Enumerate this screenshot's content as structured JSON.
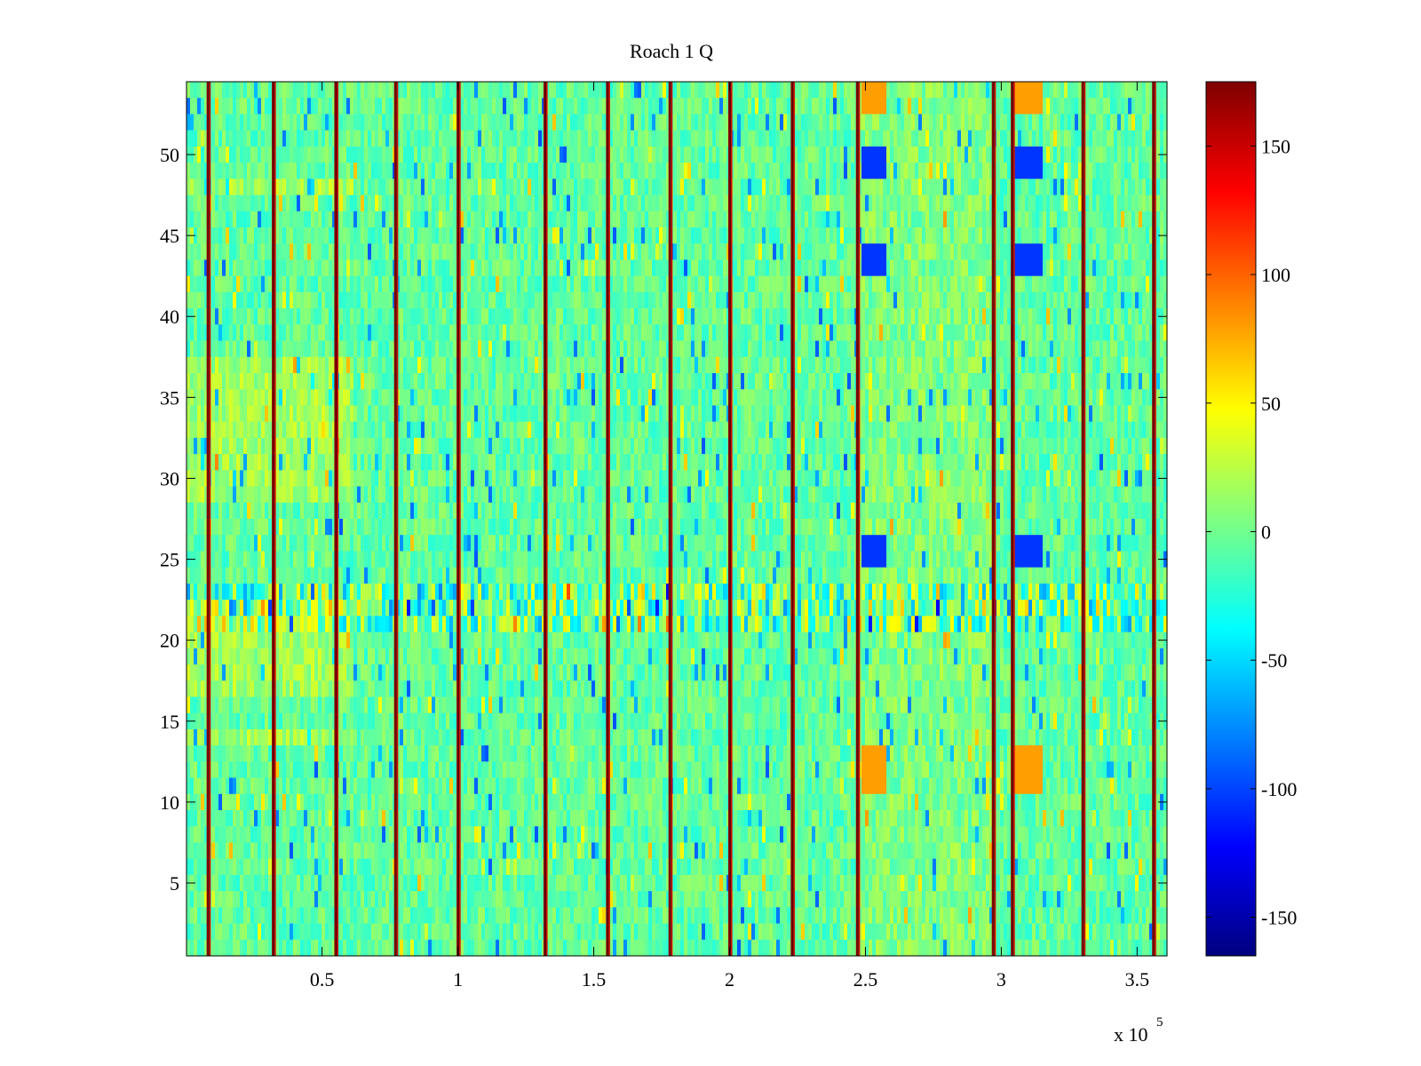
{
  "chart_data": {
    "type": "heatmap",
    "title": "Roach 1 Q",
    "xlabel": "",
    "ylabel": "",
    "x_exponent_label": "x 10",
    "x_exponent_power": "5",
    "xlim": [
      100,
      361000
    ],
    "ylim": [
      0.5,
      54.5
    ],
    "x_ticks": [
      0.5,
      1,
      1.5,
      2,
      2.5,
      3,
      3.5
    ],
    "x_tick_labels": [
      "0.5",
      "1",
      "1.5",
      "2",
      "2.5",
      "3",
      "3.5"
    ],
    "y_ticks": [
      5,
      10,
      15,
      20,
      25,
      30,
      35,
      40,
      45,
      50
    ],
    "y_tick_labels": [
      "5",
      "10",
      "15",
      "20",
      "25",
      "30",
      "35",
      "40",
      "45",
      "50"
    ],
    "rows": 54,
    "colormap": "jet",
    "clim": [
      -165,
      175
    ],
    "colorbar_ticks": [
      150,
      100,
      50,
      0,
      -50,
      -100,
      -150
    ],
    "colorbar_tick_labels": [
      "150",
      "100",
      "50",
      "0",
      "-50",
      "-100",
      "-150"
    ],
    "stripes_x_e5": [
      0.08,
      0.32,
      0.55,
      0.77,
      1.0,
      1.32,
      1.55,
      1.78,
      2.0,
      2.23,
      2.47,
      2.97,
      3.04,
      3.3,
      3.56
    ],
    "dark_blue_spots": [
      {
        "x_e5": 2.53,
        "y": [
          48.5,
          49.5
        ]
      },
      {
        "x_e5": 3.1,
        "y": [
          48.5,
          49.5
        ]
      },
      {
        "x_e5": 2.53,
        "y": [
          24.5,
          25.5
        ]
      },
      {
        "x_e5": 3.1,
        "y": [
          24.5,
          25.5
        ]
      },
      {
        "x_e5": 2.53,
        "y": [
          42.5,
          43.5
        ]
      },
      {
        "x_e5": 3.1,
        "y": [
          42.5,
          43.5
        ]
      }
    ],
    "hot_spots": [
      {
        "x_e5": 2.53,
        "y": [
          52.5,
          54.5
        ]
      },
      {
        "x_e5": 3.1,
        "y": [
          52.5,
          54.5
        ]
      },
      {
        "x_e5": 2.53,
        "y": [
          10.5,
          12.5
        ]
      },
      {
        "x_e5": 3.1,
        "y": [
          10.5,
          12.5
        ]
      }
    ],
    "grid": false,
    "legend": "colorbar-right"
  }
}
